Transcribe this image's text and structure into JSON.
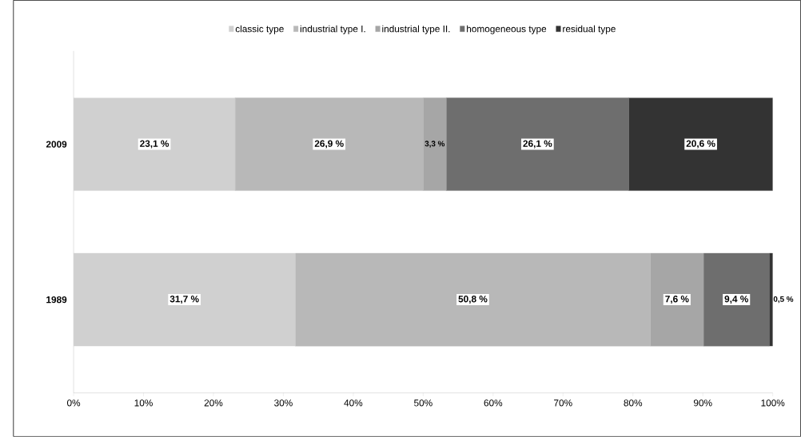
{
  "chart_data": {
    "type": "bar",
    "orientation": "horizontal",
    "stacked": true,
    "legend": "top",
    "categories": [
      "2009",
      "1989"
    ],
    "xlim": [
      0,
      100
    ],
    "xticks": [
      {
        "value": 0,
        "label": "0%"
      },
      {
        "value": 10,
        "label": "10%"
      },
      {
        "value": 20,
        "label": "20%"
      },
      {
        "value": 30,
        "label": "30%"
      },
      {
        "value": 40,
        "label": "40%"
      },
      {
        "value": 50,
        "label": "50%"
      },
      {
        "value": 60,
        "label": "60%"
      },
      {
        "value": 70,
        "label": "70%"
      },
      {
        "value": 80,
        "label": "80%"
      },
      {
        "value": 90,
        "label": "90%"
      },
      {
        "value": 100,
        "label": "100%"
      }
    ],
    "series": [
      {
        "name": "classic type",
        "color": "#d0d0d0",
        "values": [
          23.1,
          31.7
        ],
        "value_labels": [
          "23,1 %",
          "31,7 %"
        ]
      },
      {
        "name": "industrial type I.",
        "color": "#b8b8b8",
        "values": [
          26.9,
          50.8
        ],
        "value_labels": [
          "26,9 %",
          "50,8 %"
        ]
      },
      {
        "name": "industrial type II.",
        "color": "#a6a6a6",
        "values": [
          3.3,
          7.6
        ],
        "value_labels": [
          "3,3 %",
          "7,6 %"
        ]
      },
      {
        "name": "homogeneous type",
        "color": "#6e6e6e",
        "values": [
          26.1,
          9.4
        ],
        "value_labels": [
          "26,1 %",
          "9,4 %"
        ]
      },
      {
        "name": "residual type",
        "color": "#333333",
        "values": [
          20.6,
          0.5
        ],
        "value_labels": [
          "20,6 %",
          "0,5 %"
        ]
      }
    ]
  }
}
